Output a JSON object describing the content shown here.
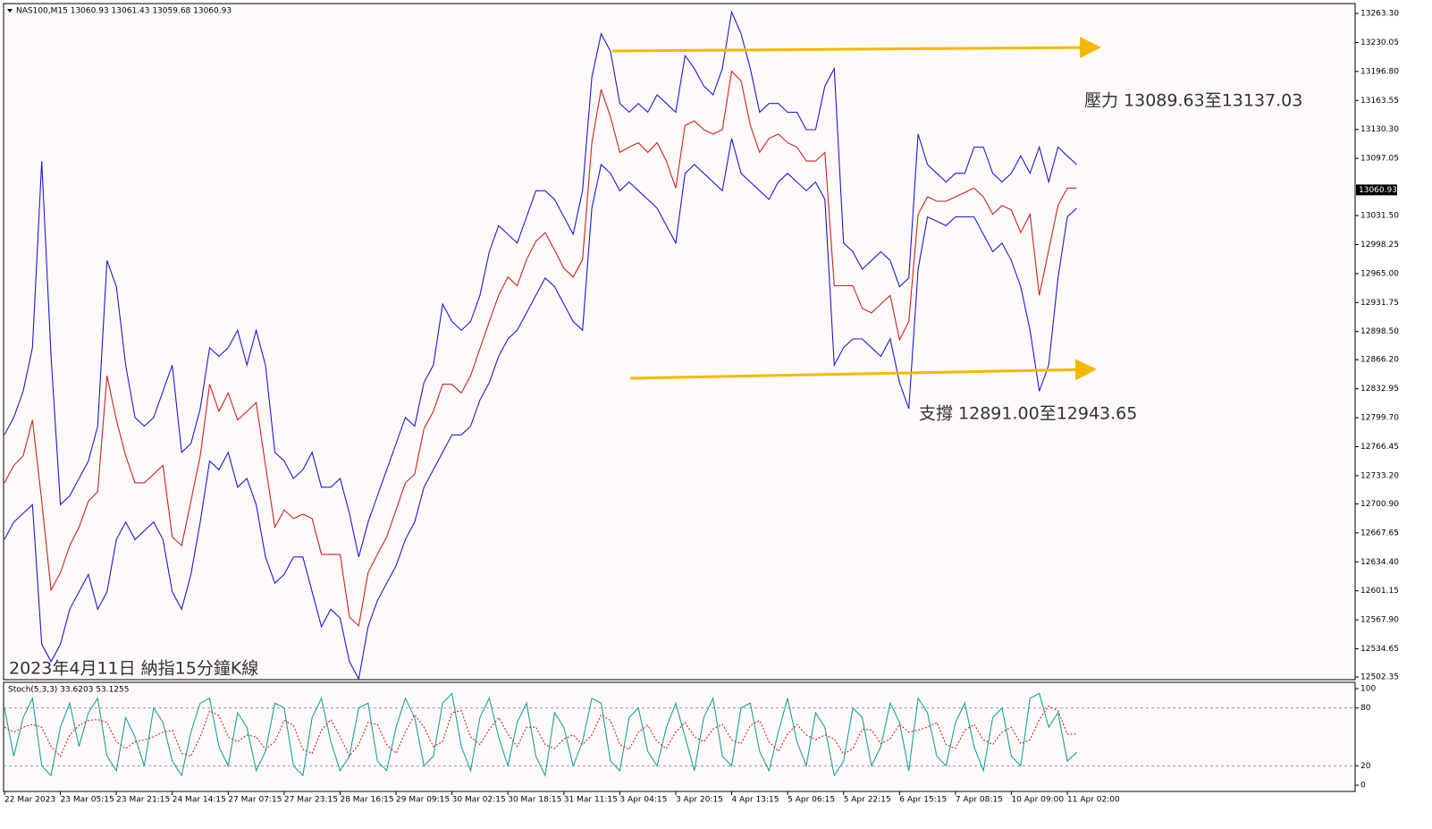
{
  "chart_data": [
    {
      "type": "line",
      "header": "NAS100,M15  13060.93 13061.43 13059.68 13060.93",
      "title": "2023年4月11日 納指15分鐘K線",
      "annotations": [
        "壓力 13089.63至13137.03",
        "支撐 12891.00至12943.65"
      ],
      "last_price": 13060.93,
      "categories": [
        "22 Mar 2023",
        null,
        null,
        null,
        null,
        null,
        "23 Mar 05:15",
        null,
        null,
        null,
        null,
        null,
        "23 Mar 21:15",
        null,
        null,
        null,
        null,
        null,
        "24 Mar 14:15",
        null,
        null,
        null,
        null,
        null,
        "27 Mar 07:15",
        null,
        null,
        null,
        null,
        null,
        "27 Mar 23:15",
        null,
        null,
        null,
        null,
        null,
        "28 Mar 16:15",
        null,
        null,
        null,
        null,
        null,
        "29 Mar 09:15",
        null,
        null,
        null,
        null,
        null,
        "30 Mar 02:15",
        null,
        null,
        null,
        null,
        null,
        "30 Mar 18:15",
        null,
        null,
        null,
        null,
        null,
        "31 Mar 11:15",
        null,
        null,
        null,
        null,
        null,
        "3 Apr 04:15",
        null,
        null,
        null,
        null,
        null,
        "3 Apr 20:15",
        null,
        null,
        null,
        null,
        null,
        "4 Apr 13:15",
        null,
        null,
        null,
        null,
        null,
        "5 Apr 06:15",
        null,
        null,
        null,
        null,
        null,
        "5 Apr 22:15",
        null,
        null,
        null,
        null,
        null,
        "6 Apr 15:15",
        null,
        null,
        null,
        null,
        null,
        "7 Apr 08:15",
        null,
        null,
        null,
        null,
        null,
        "10 Apr 09:00",
        null,
        null,
        null,
        null,
        null,
        "11 Apr 02:00",
        null
      ],
      "series": [
        {
          "color": "#d02020",
          "values": [
            12725,
            12745,
            12756,
            12797,
            12704,
            12602,
            12622,
            12653,
            12674,
            12704,
            12715,
            12848,
            12797,
            12756,
            12725,
            12725,
            12735,
            12745,
            12663,
            12653,
            12704,
            12756,
            12838,
            12807,
            12828,
            12797,
            12807,
            12817,
            12745,
            12674,
            12694,
            12684,
            12689,
            12684,
            12643,
            12643,
            12643,
            12571,
            12561,
            12622,
            12643,
            12663,
            12694,
            12725,
            12735,
            12787,
            12807,
            12838,
            12838,
            12828,
            12848,
            12879,
            12910,
            12940,
            12961,
            12951,
            12981,
            13002,
            13012,
            12992,
            12971,
            12961,
            12981,
            13115,
            13176,
            13145,
            13104,
            13110,
            13115,
            13104,
            13115,
            13094,
            13063,
            13135,
            13140,
            13130,
            13125,
            13130,
            13197,
            13186,
            13135,
            13104,
            13120,
            13125,
            13115,
            13110,
            13094,
            13094,
            13104,
            12951,
            12951,
            12951,
            12925,
            12920,
            12930,
            12940,
            12889,
            12910,
            13033,
            13053,
            13048,
            13048,
            13053,
            13058,
            13063,
            13053,
            13033,
            13043,
            13038,
            13012,
            13033,
            12940,
            12992,
            13043,
            13063,
            13063
          ]
        },
        {
          "color": "#1a1adc",
          "values": [
            12780,
            12800,
            12830,
            12880,
            13094,
            12870,
            12700,
            12710,
            12730,
            12750,
            12790,
            12980,
            12950,
            12860,
            12800,
            12790,
            12800,
            12830,
            12860,
            12760,
            12770,
            12810,
            12880,
            12870,
            12880,
            12900,
            12860,
            12900,
            12860,
            12760,
            12750,
            12730,
            12740,
            12760,
            12720,
            12720,
            12730,
            12690,
            12640,
            12680,
            12710,
            12740,
            12770,
            12800,
            12790,
            12840,
            12860,
            12930,
            12910,
            12900,
            12910,
            12940,
            12990,
            13020,
            13010,
            13000,
            13030,
            13060,
            13060,
            13050,
            13030,
            13010,
            13060,
            13190,
            13240,
            13220,
            13160,
            13150,
            13160,
            13150,
            13170,
            13160,
            13150,
            13215,
            13200,
            13180,
            13170,
            13200,
            13265,
            13240,
            13200,
            13150,
            13160,
            13160,
            13150,
            13150,
            13130,
            13130,
            13180,
            13200,
            13000,
            12990,
            12970,
            12980,
            12990,
            12980,
            12950,
            12960,
            13125,
            13090,
            13080,
            13070,
            13080,
            13080,
            13110,
            13110,
            13080,
            13070,
            13080,
            13100,
            13080,
            13110,
            13070,
            13110,
            13100,
            13090
          ]
        },
        {
          "color": "#1a1adc",
          "values": [
            12660,
            12680,
            12690,
            12700,
            12540,
            12520,
            12540,
            12580,
            12600,
            12620,
            12580,
            12600,
            12660,
            12680,
            12660,
            12670,
            12680,
            12660,
            12600,
            12580,
            12620,
            12680,
            12750,
            12740,
            12760,
            12720,
            12730,
            12700,
            12640,
            12610,
            12620,
            12640,
            12640,
            12600,
            12560,
            12580,
            12570,
            12520,
            12500,
            12560,
            12590,
            12610,
            12630,
            12660,
            12680,
            12720,
            12740,
            12760,
            12780,
            12780,
            12790,
            12820,
            12840,
            12870,
            12890,
            12900,
            12920,
            12940,
            12960,
            12950,
            12930,
            12910,
            12900,
            13040,
            13090,
            13080,
            13060,
            13070,
            13060,
            13050,
            13040,
            13020,
            13000,
            13080,
            13090,
            13080,
            13070,
            13060,
            13120,
            13080,
            13070,
            13060,
            13050,
            13070,
            13080,
            13070,
            13060,
            13070,
            13050,
            12860,
            12880,
            12890,
            12890,
            12880,
            12870,
            12890,
            12840,
            12810,
            12970,
            13030,
            13025,
            13020,
            13030,
            13030,
            13030,
            13010,
            12990,
            13000,
            12980,
            12950,
            12900,
            12830,
            12860,
            12960,
            13030,
            13040
          ]
        }
      ],
      "ylim": [
        12499.3,
        13274.6
      ],
      "yticks": [
        {
          "value": 13263.3,
          "label": "13263.30"
        },
        {
          "value": 13230.05,
          "label": "13230.05"
        },
        {
          "value": 13196.8,
          "label": "13196.80"
        },
        {
          "value": 13163.55,
          "label": "13163.55"
        },
        {
          "value": 13130.3,
          "label": "13130.30"
        },
        {
          "value": 13097.05,
          "label": "13097.05"
        },
        {
          "value": 13031.5,
          "label": "13031.50"
        },
        {
          "value": 12998.25,
          "label": "12998.25"
        },
        {
          "value": 12965,
          "label": "12965.00"
        },
        {
          "value": 12931.75,
          "label": "12931.75"
        },
        {
          "value": 12898.5,
          "label": "12898.50"
        },
        {
          "value": 12866.2,
          "label": "12866.20"
        },
        {
          "value": 12832.95,
          "label": "12832.95"
        },
        {
          "value": 12799.7,
          "label": "12799.70"
        },
        {
          "value": 12766.45,
          "label": "12766.45"
        },
        {
          "value": 12733.2,
          "label": "12733.20"
        },
        {
          "value": 12700.9,
          "label": "12700.90"
        },
        {
          "value": 12667.65,
          "label": "12667.65"
        },
        {
          "value": 12634.4,
          "label": "12634.40"
        },
        {
          "value": 12601.15,
          "label": "12601.15"
        },
        {
          "value": 12567.9,
          "label": "12567.90"
        },
        {
          "value": 12534.65,
          "label": "12534.65"
        },
        {
          "value": 12502.35,
          "label": "12502.35"
        }
      ]
    },
    {
      "type": "line",
      "title": "Stoch(5,3,3) 33.6203 53.1255",
      "series": [
        {
          "color": "#1aa0a0",
          "values": [
            80,
            30,
            70,
            90,
            20,
            10,
            60,
            85,
            40,
            75,
            90,
            30,
            15,
            70,
            50,
            20,
            80,
            65,
            25,
            10,
            55,
            85,
            90,
            40,
            20,
            75,
            60,
            15,
            35,
            85,
            80,
            20,
            10,
            70,
            90,
            45,
            15,
            30,
            80,
            85,
            25,
            15,
            60,
            90,
            70,
            20,
            30,
            85,
            95,
            40,
            15,
            70,
            90,
            50,
            20,
            65,
            85,
            30,
            10,
            75,
            60,
            20,
            45,
            90,
            85,
            25,
            15,
            70,
            80,
            35,
            20,
            60,
            85,
            50,
            15,
            70,
            90,
            30,
            20,
            80,
            85,
            35,
            15,
            55,
            90,
            45,
            20,
            75,
            60,
            10,
            25,
            80,
            70,
            20,
            40,
            85,
            65,
            15,
            90,
            75,
            30,
            20,
            65,
            85,
            40,
            15,
            70,
            80,
            30,
            20,
            90,
            95,
            60,
            75,
            25,
            34
          ]
        },
        {
          "color": "#d02020",
          "values": [
            60,
            55,
            60,
            63,
            60,
            40,
            30,
            52,
            62,
            67,
            68,
            65,
            45,
            38,
            45,
            47,
            50,
            55,
            57,
            33,
            30,
            50,
            77,
            72,
            50,
            45,
            52,
            50,
            37,
            45,
            67,
            62,
            37,
            33,
            57,
            68,
            50,
            30,
            42,
            65,
            63,
            42,
            33,
            55,
            73,
            60,
            40,
            45,
            75,
            77,
            50,
            42,
            58,
            70,
            53,
            40,
            60,
            60,
            42,
            38,
            48,
            52,
            42,
            52,
            73,
            67,
            42,
            37,
            55,
            62,
            45,
            38,
            55,
            65,
            50,
            45,
            58,
            63,
            47,
            43,
            62,
            67,
            45,
            35,
            53,
            63,
            52,
            47,
            52,
            48,
            32,
            38,
            58,
            57,
            43,
            48,
            63,
            55,
            57,
            60,
            65,
            42,
            38,
            57,
            63,
            47,
            42,
            55,
            60,
            43,
            47,
            68,
            82,
            77,
            53,
            53
          ]
        }
      ],
      "ylim": [
        -6.5,
        106.5
      ],
      "yticks": [
        0,
        20,
        80,
        100
      ],
      "levels": [
        20,
        80
      ]
    }
  ]
}
